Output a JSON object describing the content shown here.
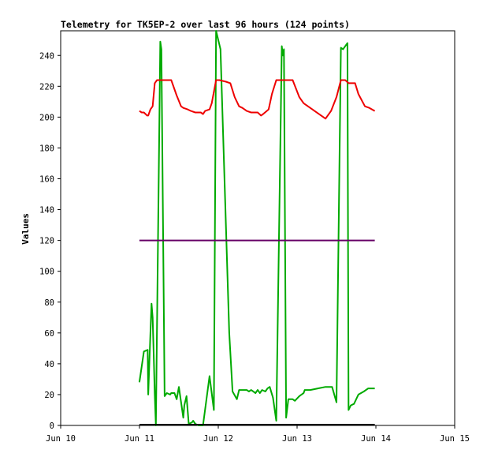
{
  "chart_data": {
    "type": "line",
    "title": "Telemetry for TK5EP-2 over last 96 hours (124 points)",
    "xlabel": "",
    "ylabel": "Values",
    "xlim": [
      "2024-06-10T00:00",
      "2024-06-15T00:00"
    ],
    "ylim": [
      0,
      256
    ],
    "x_ticks": [
      {
        "x": "2024-06-10T00:00",
        "label": "Jun 10"
      },
      {
        "x": "2024-06-11T00:00",
        "label": "Jun 11"
      },
      {
        "x": "2024-06-12T00:00",
        "label": "Jun 12"
      },
      {
        "x": "2024-06-13T00:00",
        "label": "Jun 13"
      },
      {
        "x": "2024-06-14T00:00",
        "label": "Jun 14"
      },
      {
        "x": "2024-06-15T00:00",
        "label": "Jun 15"
      }
    ],
    "y_ticks": [
      0,
      20,
      40,
      60,
      80,
      100,
      120,
      140,
      160,
      180,
      200,
      220,
      240
    ],
    "grid": false,
    "legend": "none",
    "series": [
      {
        "color": "#00aa00",
        "points": [
          [
            "2024-06-10T23:59",
            28
          ],
          [
            "2024-06-11T01:20",
            48
          ],
          [
            "2024-06-11T02:30",
            49
          ],
          [
            "2024-06-11T02:40",
            20
          ],
          [
            "2024-06-11T03:20",
            60
          ],
          [
            "2024-06-11T03:40",
            79
          ],
          [
            "2024-06-11T04:00",
            70
          ],
          [
            "2024-06-11T04:20",
            45
          ],
          [
            "2024-06-11T04:40",
            20
          ],
          [
            "2024-06-11T05:00",
            0
          ],
          [
            "2024-06-11T06:20",
            249
          ],
          [
            "2024-06-11T06:40",
            244
          ],
          [
            "2024-06-11T07:40",
            19
          ],
          [
            "2024-06-11T08:20",
            21
          ],
          [
            "2024-06-11T09:20",
            20
          ],
          [
            "2024-06-11T09:40",
            21
          ],
          [
            "2024-06-11T10:40",
            21
          ],
          [
            "2024-06-11T11:20",
            17
          ],
          [
            "2024-06-11T12:00",
            25
          ],
          [
            "2024-06-11T13:20",
            5
          ],
          [
            "2024-06-11T13:40",
            13
          ],
          [
            "2024-06-11T14:20",
            19
          ],
          [
            "2024-06-11T15:00",
            1
          ],
          [
            "2024-06-11T16:00",
            2
          ],
          [
            "2024-06-11T16:20",
            3
          ],
          [
            "2024-06-11T17:00",
            1
          ],
          [
            "2024-06-11T18:00",
            0
          ],
          [
            "2024-06-11T19:20",
            0
          ],
          [
            "2024-06-11T21:20",
            32
          ],
          [
            "2024-06-11T22:40",
            10
          ],
          [
            "2024-06-11T23:20",
            256
          ],
          [
            "2024-06-12T00:00",
            250
          ],
          [
            "2024-06-12T00:40",
            244
          ],
          [
            "2024-06-12T03:20",
            60
          ],
          [
            "2024-06-12T04:20",
            22
          ],
          [
            "2024-06-12T05:40",
            17
          ],
          [
            "2024-06-12T06:20",
            23
          ],
          [
            "2024-06-12T08:40",
            23
          ],
          [
            "2024-06-12T09:20",
            22
          ],
          [
            "2024-06-12T10:00",
            23
          ],
          [
            "2024-06-12T11:20",
            21
          ],
          [
            "2024-06-12T12:00",
            23
          ],
          [
            "2024-06-12T12:40",
            21
          ],
          [
            "2024-06-12T13:20",
            23
          ],
          [
            "2024-06-12T14:20",
            22
          ],
          [
            "2024-06-12T15:00",
            24
          ],
          [
            "2024-06-12T15:40",
            25
          ],
          [
            "2024-06-12T16:40",
            18
          ],
          [
            "2024-06-12T17:40",
            3
          ],
          [
            "2024-06-12T19:20",
            246
          ],
          [
            "2024-06-12T19:40",
            240
          ],
          [
            "2024-06-12T20:00",
            244
          ],
          [
            "2024-06-12T20:40",
            5
          ],
          [
            "2024-06-12T21:20",
            17
          ],
          [
            "2024-06-12T22:40",
            17
          ],
          [
            "2024-06-12T23:20",
            16
          ],
          [
            "2024-06-13T00:40",
            19
          ],
          [
            "2024-06-13T02:00",
            21
          ],
          [
            "2024-06-13T02:20",
            23
          ],
          [
            "2024-06-13T04:00",
            23
          ],
          [
            "2024-06-13T06:20",
            24
          ],
          [
            "2024-06-13T08:40",
            25
          ],
          [
            "2024-06-13T09:20",
            25
          ],
          [
            "2024-06-13T10:40",
            25
          ],
          [
            "2024-06-13T12:00",
            15
          ],
          [
            "2024-06-13T12:40",
            130
          ],
          [
            "2024-06-13T13:20",
            245
          ],
          [
            "2024-06-13T14:00",
            244
          ],
          [
            "2024-06-13T15:20",
            248
          ],
          [
            "2024-06-13T15:40",
            10
          ],
          [
            "2024-06-13T16:20",
            13
          ],
          [
            "2024-06-13T17:20",
            14
          ],
          [
            "2024-06-13T18:40",
            20
          ],
          [
            "2024-06-13T20:20",
            22
          ],
          [
            "2024-06-13T21:40",
            24
          ],
          [
            "2024-06-13T23:40",
            24
          ]
        ]
      },
      {
        "color": "#ee0000",
        "points": [
          [
            "2024-06-10T23:59",
            204
          ],
          [
            "2024-06-11T00:40",
            203
          ],
          [
            "2024-06-11T01:20",
            203
          ],
          [
            "2024-06-11T02:20",
            201
          ],
          [
            "2024-06-11T02:40",
            201
          ],
          [
            "2024-06-11T03:20",
            205
          ],
          [
            "2024-06-11T04:00",
            207
          ],
          [
            "2024-06-11T04:40",
            222
          ],
          [
            "2024-06-11T05:20",
            224
          ],
          [
            "2024-06-11T06:40",
            224
          ],
          [
            "2024-06-11T09:40",
            224
          ],
          [
            "2024-06-11T11:20",
            214
          ],
          [
            "2024-06-11T12:40",
            207
          ],
          [
            "2024-06-11T13:20",
            206
          ],
          [
            "2024-06-11T14:40",
            205
          ],
          [
            "2024-06-11T15:40",
            204
          ],
          [
            "2024-06-11T17:00",
            203
          ],
          [
            "2024-06-11T18:40",
            203
          ],
          [
            "2024-06-11T19:20",
            202
          ],
          [
            "2024-06-11T20:00",
            204
          ],
          [
            "2024-06-11T21:20",
            205
          ],
          [
            "2024-06-11T22:00",
            209
          ],
          [
            "2024-06-11T23:20",
            224
          ],
          [
            "2024-06-12T00:20",
            224
          ],
          [
            "2024-06-12T02:20",
            223
          ],
          [
            "2024-06-12T03:40",
            222
          ],
          [
            "2024-06-12T05:00",
            213
          ],
          [
            "2024-06-12T06:20",
            207
          ],
          [
            "2024-06-12T07:20",
            206
          ],
          [
            "2024-06-12T08:40",
            204
          ],
          [
            "2024-06-12T10:00",
            203
          ],
          [
            "2024-06-12T11:20",
            203
          ],
          [
            "2024-06-12T12:00",
            203
          ],
          [
            "2024-06-12T13:00",
            201
          ],
          [
            "2024-06-12T13:40",
            202
          ],
          [
            "2024-06-12T15:20",
            205
          ],
          [
            "2024-06-12T16:20",
            215
          ],
          [
            "2024-06-12T17:40",
            224
          ],
          [
            "2024-06-12T19:40",
            224
          ],
          [
            "2024-06-12T22:40",
            224
          ],
          [
            "2024-06-13T00:40",
            213
          ],
          [
            "2024-06-13T02:00",
            209
          ],
          [
            "2024-06-13T08:40",
            199
          ],
          [
            "2024-06-13T10:20",
            204
          ],
          [
            "2024-06-13T12:00",
            213
          ],
          [
            "2024-06-13T13:20",
            224
          ],
          [
            "2024-06-13T14:40",
            224
          ],
          [
            "2024-06-13T15:40",
            222
          ],
          [
            "2024-06-13T17:40",
            222
          ],
          [
            "2024-06-13T18:40",
            215
          ],
          [
            "2024-06-13T20:40",
            207
          ],
          [
            "2024-06-13T22:00",
            206
          ],
          [
            "2024-06-13T23:40",
            204
          ]
        ]
      },
      {
        "color": "#660066",
        "points": [
          [
            "2024-06-10T23:59",
            120
          ],
          [
            "2024-06-13T23:40",
            120
          ]
        ]
      },
      {
        "color": "#000000",
        "points": [
          [
            "2024-06-10T23:59",
            0.5
          ],
          [
            "2024-06-13T23:40",
            0.5
          ]
        ]
      }
    ]
  }
}
